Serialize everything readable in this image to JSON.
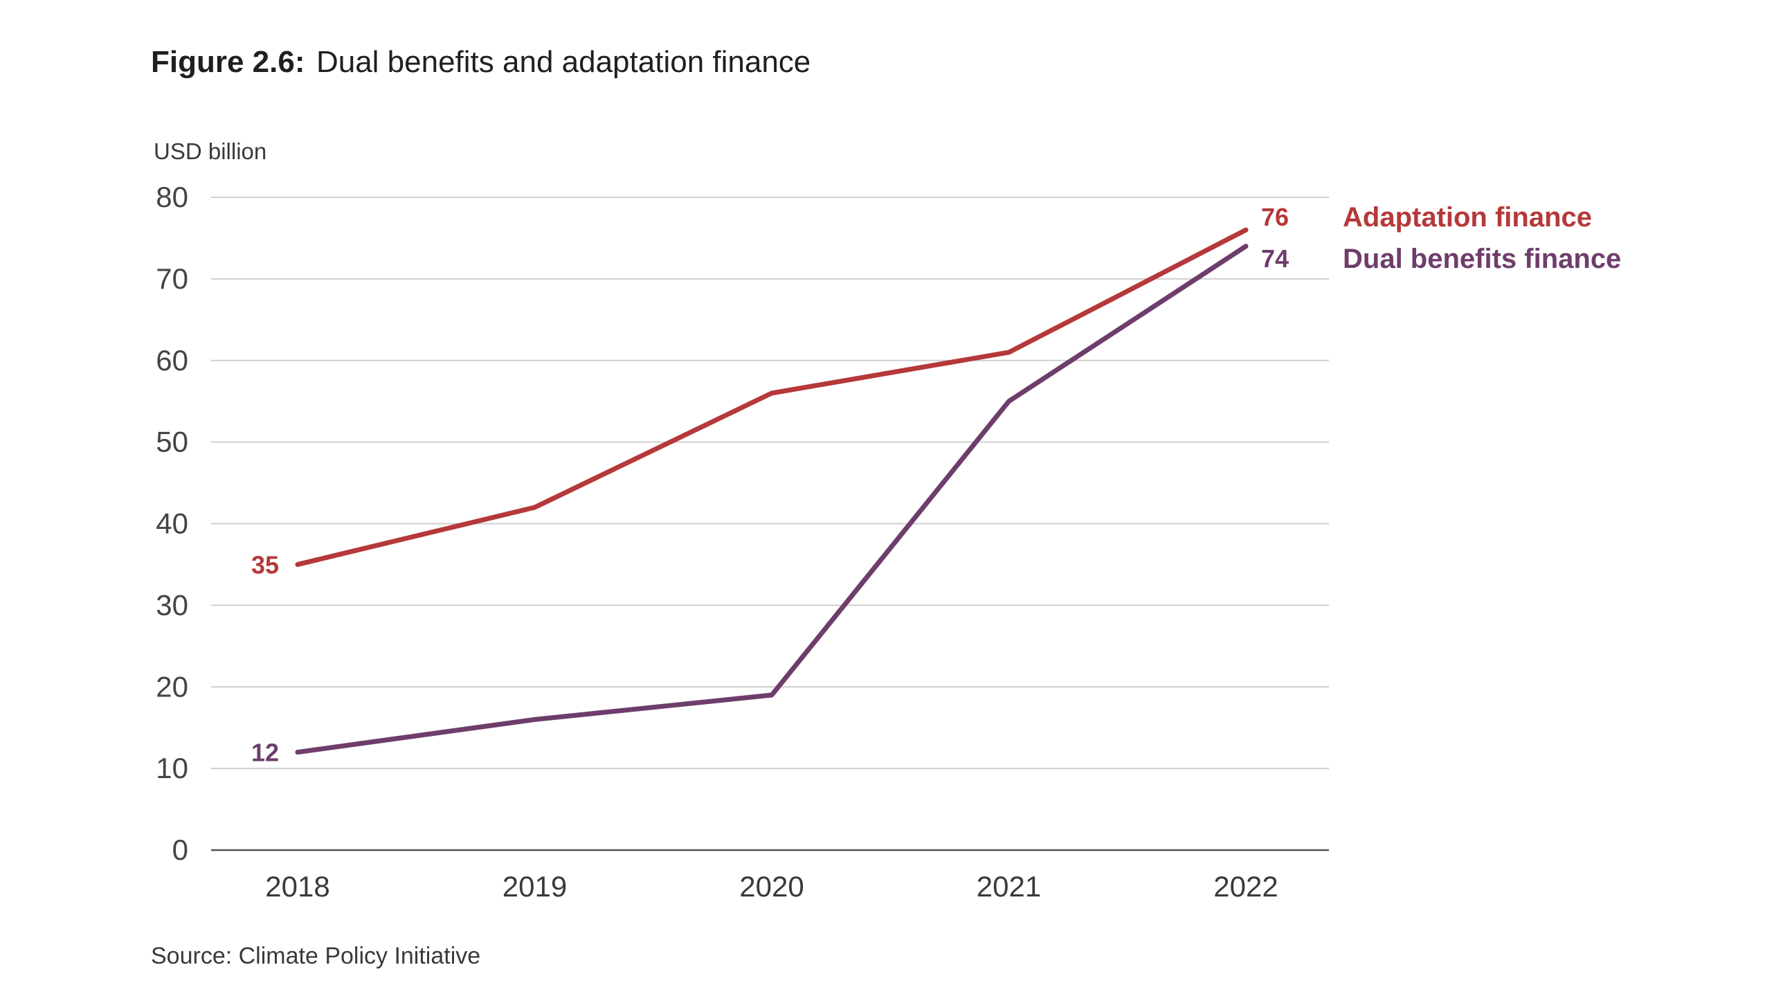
{
  "figure": {
    "label": "Figure 2.6:",
    "title": "Dual benefits and adaptation finance",
    "source": "Source: Climate Policy Initiative"
  },
  "chart_data": {
    "type": "line",
    "title": "Dual benefits and adaptation finance",
    "ylabel": "USD billion",
    "xlabel": "",
    "x": [
      "2018",
      "2019",
      "2020",
      "2021",
      "2022"
    ],
    "ylim": [
      0,
      80
    ],
    "yticks": [
      0,
      10,
      20,
      30,
      40,
      50,
      60,
      70,
      80
    ],
    "grid": true,
    "legend": "right",
    "series": [
      {
        "name": "Adaptation finance",
        "color": "#b5383a",
        "values": [
          35,
          42,
          56,
          61,
          76
        ],
        "start_label": "35",
        "end_label": "76"
      },
      {
        "name": "Dual benefits finance",
        "color": "#6e3d6b",
        "values": [
          12,
          16,
          19,
          55,
          74
        ],
        "start_label": "12",
        "end_label": "74"
      }
    ]
  }
}
